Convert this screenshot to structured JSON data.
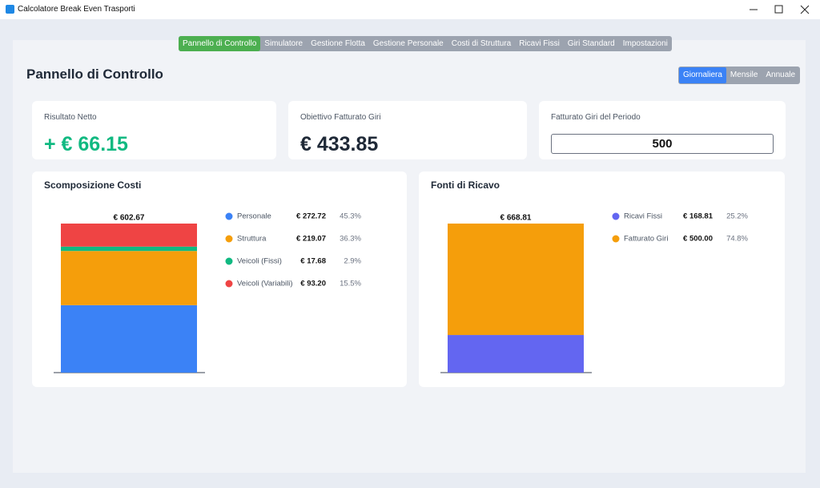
{
  "window": {
    "title": "Calcolatore Break Even Trasporti"
  },
  "tabs": [
    "Pannello di Controllo",
    "Simulatore",
    "Gestione Flotta",
    "Gestione Personale",
    "Costi di Struttura",
    "Ricavi Fissi",
    "Giri Standard",
    "Impostazioni"
  ],
  "page_title": "Pannello di Controllo",
  "periods": [
    "Giornaliera",
    "Mensile",
    "Annuale"
  ],
  "cards": [
    {
      "label": "Risultato Netto",
      "value": "+ € 66.15"
    },
    {
      "label": "Obiettivo Fatturato Giri",
      "value": "€ 433.85"
    },
    {
      "label": "Fatturato Giri del Periodo",
      "input": "500"
    }
  ],
  "chart_data": [
    {
      "type": "stacked-bar",
      "title": "Scomposizione Costi",
      "total": 602.67,
      "total_label": "€ 602.67",
      "series": [
        {
          "name": "Personale",
          "color": "#3b82f6",
          "values": [
            272.72
          ],
          "value_labels": [
            "€ 272.72"
          ],
          "share": "45.3%"
        },
        {
          "name": "Struttura",
          "color": "#f59e0b",
          "values": [
            219.07
          ],
          "value_labels": [
            "€ 219.07"
          ],
          "share": "36.3%"
        },
        {
          "name": "Veicoli (Fissi)",
          "color": "#10b981",
          "values": [
            17.68
          ],
          "value_labels": [
            "€ 17.68"
          ],
          "share": "2.9%"
        },
        {
          "name": "Veicoli (Variabili)",
          "color": "#ef4444",
          "values": [
            93.2
          ],
          "value_labels": [
            "€ 93.20"
          ],
          "share": "15.5%"
        }
      ]
    },
    {
      "type": "stacked-bar",
      "title": "Fonti di Ricavo",
      "total": 668.81,
      "total_label": "€ 668.81",
      "series": [
        {
          "name": "Ricavi Fissi",
          "color": "#6366f1",
          "values": [
            168.81
          ],
          "value_labels": [
            "€ 168.81"
          ],
          "share": "25.2%"
        },
        {
          "name": "Fatturato Giri",
          "color": "#f59e0b",
          "values": [
            500.0
          ],
          "value_labels": [
            "€ 500.00"
          ],
          "share": "74.8%"
        }
      ]
    }
  ]
}
